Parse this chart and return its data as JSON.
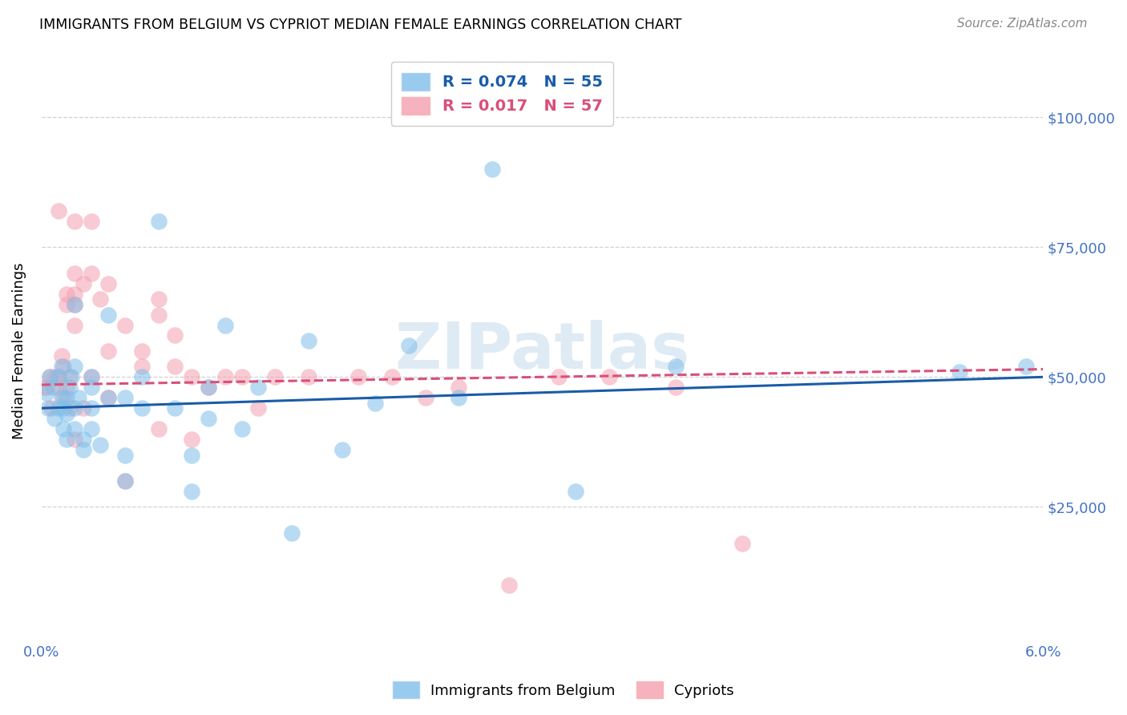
{
  "title": "IMMIGRANTS FROM BELGIUM VS CYPRIOT MEDIAN FEMALE EARNINGS CORRELATION CHART",
  "source": "Source: ZipAtlas.com",
  "ylabel": "Median Female Earnings",
  "ytick_labels": [
    "$25,000",
    "$50,000",
    "$75,000",
    "$100,000"
  ],
  "ytick_values": [
    25000,
    50000,
    75000,
    100000
  ],
  "y_min": 0,
  "y_max": 110000,
  "x_min": 0.0,
  "x_max": 0.06,
  "legend_r1": "R = 0.074",
  "legend_n1": "N = 55",
  "legend_r2": "R = 0.017",
  "legend_n2": "N = 57",
  "color_blue": "#7fbfea",
  "color_pink": "#f4a0b0",
  "line_color_blue": "#1a5ca8",
  "line_color_pink": "#d94f7a",
  "watermark": "ZIPatlas",
  "scatter_blue_x": [
    0.0003,
    0.0004,
    0.0005,
    0.0007,
    0.0008,
    0.001,
    0.001,
    0.0012,
    0.0012,
    0.0013,
    0.0013,
    0.0015,
    0.0015,
    0.0015,
    0.0017,
    0.0018,
    0.002,
    0.002,
    0.002,
    0.002,
    0.0022,
    0.0025,
    0.0025,
    0.003,
    0.003,
    0.003,
    0.003,
    0.0035,
    0.004,
    0.004,
    0.005,
    0.005,
    0.005,
    0.006,
    0.006,
    0.007,
    0.008,
    0.009,
    0.009,
    0.01,
    0.01,
    0.011,
    0.012,
    0.013,
    0.015,
    0.016,
    0.018,
    0.02,
    0.022,
    0.025,
    0.027,
    0.032,
    0.038,
    0.055,
    0.059
  ],
  "scatter_blue_y": [
    47000,
    44000,
    50000,
    48000,
    42000,
    50000,
    44000,
    52000,
    46000,
    44000,
    40000,
    46000,
    43000,
    38000,
    48000,
    50000,
    64000,
    52000,
    44000,
    40000,
    46000,
    38000,
    36000,
    50000,
    48000,
    44000,
    40000,
    37000,
    62000,
    46000,
    46000,
    35000,
    30000,
    50000,
    44000,
    80000,
    44000,
    35000,
    28000,
    48000,
    42000,
    60000,
    40000,
    48000,
    20000,
    57000,
    36000,
    45000,
    56000,
    46000,
    90000,
    28000,
    52000,
    51000,
    52000
  ],
  "scatter_pink_x": [
    0.0002,
    0.0003,
    0.0005,
    0.0006,
    0.0008,
    0.001,
    0.001,
    0.001,
    0.0012,
    0.0013,
    0.0013,
    0.0015,
    0.0015,
    0.0015,
    0.0017,
    0.0017,
    0.002,
    0.002,
    0.002,
    0.002,
    0.002,
    0.002,
    0.0025,
    0.0025,
    0.003,
    0.003,
    0.003,
    0.0035,
    0.004,
    0.004,
    0.004,
    0.005,
    0.005,
    0.006,
    0.006,
    0.007,
    0.007,
    0.007,
    0.008,
    0.008,
    0.009,
    0.009,
    0.01,
    0.011,
    0.012,
    0.013,
    0.014,
    0.016,
    0.019,
    0.021,
    0.023,
    0.025,
    0.028,
    0.031,
    0.034,
    0.038,
    0.042
  ],
  "scatter_pink_y": [
    48000,
    48000,
    50000,
    44000,
    50000,
    50000,
    82000,
    48000,
    54000,
    52000,
    46000,
    66000,
    64000,
    48000,
    50000,
    44000,
    80000,
    70000,
    66000,
    64000,
    60000,
    38000,
    68000,
    44000,
    80000,
    70000,
    50000,
    65000,
    68000,
    55000,
    46000,
    60000,
    30000,
    55000,
    52000,
    62000,
    65000,
    40000,
    58000,
    52000,
    50000,
    38000,
    48000,
    50000,
    50000,
    44000,
    50000,
    50000,
    50000,
    50000,
    46000,
    48000,
    10000,
    50000,
    50000,
    48000,
    18000
  ],
  "blue_line_x": [
    0.0,
    0.06
  ],
  "blue_line_y": [
    44000,
    50000
  ],
  "pink_line_x": [
    0.0,
    0.06
  ],
  "pink_line_y": [
    48500,
    51500
  ]
}
